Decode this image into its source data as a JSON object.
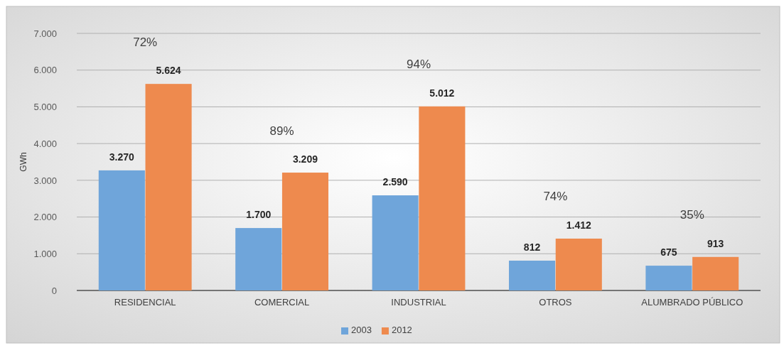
{
  "chart_data": {
    "type": "bar",
    "ylabel": "GWh",
    "categories": [
      "RESIDENCIAL",
      "COMERCIAL",
      "INDUSTRIAL",
      "OTROS",
      "ALUMBRADO PÚBLICO"
    ],
    "series": [
      {
        "name": "2003",
        "color": "#6fa5da",
        "values": [
          3270,
          1700,
          2590,
          812,
          675
        ],
        "value_labels": [
          "3.270",
          "1.700",
          "2.590",
          "812",
          "675"
        ]
      },
      {
        "name": "2012",
        "color": "#ee8a4e",
        "values": [
          5624,
          3209,
          5012,
          1412,
          913
        ],
        "value_labels": [
          "5.624",
          "3.209",
          "5.012",
          "1.412",
          "913"
        ]
      }
    ],
    "ylim": [
      0,
      7000
    ],
    "yticks": [
      {
        "value": 0,
        "label": "0"
      },
      {
        "value": 1000,
        "label": "1.000"
      },
      {
        "value": 2000,
        "label": "2.000"
      },
      {
        "value": 3000,
        "label": "3.000"
      },
      {
        "value": 4000,
        "label": "4.000"
      },
      {
        "value": 5000,
        "label": "5.000"
      },
      {
        "value": 6000,
        "label": "6.000"
      },
      {
        "value": 7000,
        "label": "7.000"
      }
    ],
    "grid": "y",
    "legend": "bottom",
    "annotations": [
      "72%",
      "89%",
      "94%",
      "74%",
      "35%"
    ]
  }
}
